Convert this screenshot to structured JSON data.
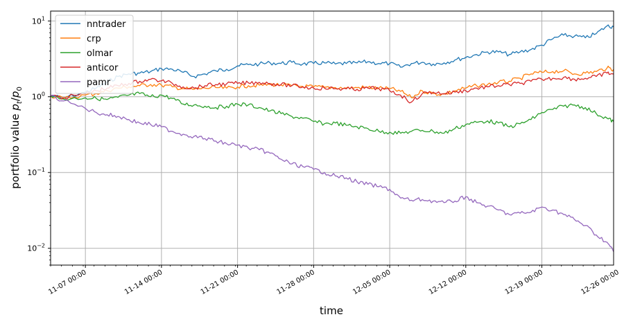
{
  "chart_data": {
    "type": "line",
    "title": "",
    "xlabel": "time",
    "ylabel": "portfolio value p_t/p_0",
    "ylabel_parts": {
      "prefix": "portfolio value ",
      "num": "p",
      "num_sub": "t",
      "den": "p",
      "den_sub": "0"
    },
    "yscale": "log",
    "ylim": [
      0.006,
      13.5
    ],
    "y_ticks": [
      {
        "value": 10,
        "base": "10",
        "exp": "1"
      },
      {
        "value": 1,
        "base": "10",
        "exp": "0"
      },
      {
        "value": 0.1,
        "base": "10",
        "exp": "−1"
      },
      {
        "value": 0.01,
        "base": "10",
        "exp": "−2"
      }
    ],
    "xlim": [
      -1.2,
      50.6
    ],
    "x_ticks": [
      {
        "value": 2,
        "label": "11-07 00:00"
      },
      {
        "value": 9,
        "label": "11-14 00:00"
      },
      {
        "value": 16,
        "label": "11-21 00:00"
      },
      {
        "value": 23,
        "label": "11-28 00:00"
      },
      {
        "value": 30,
        "label": "12-05 00:00"
      },
      {
        "value": 37,
        "label": "12-12 00:00"
      },
      {
        "value": 44,
        "label": "12-19 00:00"
      },
      {
        "value": 51,
        "label": "12-26 00:00"
      }
    ],
    "grid": true,
    "legend_position": "top-left",
    "series": [
      {
        "name": "nntrader",
        "color": "#1f77b4",
        "x": [
          -1.2,
          0,
          2,
          3,
          4,
          5,
          6,
          7,
          8,
          9,
          10,
          11,
          12,
          13,
          14,
          15,
          16,
          17,
          18,
          19,
          20,
          21,
          22,
          23,
          24,
          25,
          26,
          27,
          28,
          29,
          30,
          31,
          32,
          33,
          34,
          35,
          36,
          37,
          38,
          39,
          40,
          41,
          42,
          43,
          44,
          45,
          46,
          47,
          48,
          49,
          50,
          50.6
        ],
        "y": [
          1.03,
          0.96,
          1.15,
          1.3,
          1.55,
          1.85,
          2.0,
          2.05,
          2.15,
          2.35,
          2.3,
          2.1,
          1.85,
          2.0,
          2.2,
          2.3,
          2.55,
          2.65,
          2.7,
          2.8,
          2.75,
          2.85,
          2.7,
          2.75,
          2.8,
          2.7,
          2.75,
          2.8,
          2.9,
          2.75,
          2.75,
          2.45,
          2.75,
          2.85,
          2.7,
          2.8,
          3.05,
          3.3,
          3.6,
          3.9,
          3.9,
          3.6,
          3.9,
          4.2,
          4.8,
          5.8,
          6.5,
          6.3,
          6.0,
          6.8,
          8.6,
          8.4
        ]
      },
      {
        "name": "crp",
        "color": "#ff7f0e",
        "x": [
          -1.2,
          0,
          2,
          3,
          4,
          5,
          6,
          7,
          8,
          9,
          10,
          11,
          12,
          13,
          14,
          15,
          16,
          17,
          18,
          19,
          20,
          21,
          22,
          23,
          24,
          25,
          26,
          27,
          28,
          29,
          30,
          31,
          32,
          33,
          34,
          35,
          36,
          37,
          38,
          39,
          40,
          41,
          42,
          43,
          44,
          45,
          46,
          47,
          48,
          49,
          50,
          50.6
        ],
        "y": [
          1.03,
          0.95,
          1.05,
          1.1,
          1.2,
          1.3,
          1.35,
          1.4,
          1.45,
          1.42,
          1.35,
          1.28,
          1.25,
          1.3,
          1.32,
          1.3,
          1.35,
          1.4,
          1.42,
          1.45,
          1.43,
          1.4,
          1.37,
          1.35,
          1.33,
          1.32,
          1.3,
          1.32,
          1.33,
          1.3,
          1.28,
          1.18,
          0.97,
          1.2,
          1.1,
          1.08,
          1.2,
          1.3,
          1.4,
          1.45,
          1.55,
          1.6,
          1.75,
          2.0,
          2.1,
          2.15,
          2.2,
          2.0,
          2.05,
          2.15,
          2.4,
          2.3
        ]
      },
      {
        "name": "olmar",
        "color": "#2ca02c",
        "x": [
          -1.2,
          0,
          2,
          3,
          4,
          5,
          6,
          7,
          8,
          9,
          10,
          11,
          12,
          13,
          14,
          15,
          16,
          17,
          18,
          19,
          20,
          21,
          22,
          23,
          24,
          25,
          26,
          27,
          28,
          29,
          30,
          31,
          32,
          33,
          34,
          35,
          36,
          37,
          38,
          39,
          40,
          41,
          42,
          43,
          44,
          45,
          46,
          47,
          48,
          49,
          50,
          50.6
        ],
        "y": [
          1.03,
          0.93,
          0.97,
          0.95,
          0.92,
          0.98,
          1.05,
          1.1,
          1.0,
          1.05,
          0.95,
          0.8,
          0.78,
          0.75,
          0.72,
          0.75,
          0.8,
          0.78,
          0.72,
          0.65,
          0.6,
          0.55,
          0.52,
          0.47,
          0.44,
          0.45,
          0.42,
          0.4,
          0.38,
          0.35,
          0.34,
          0.33,
          0.35,
          0.36,
          0.35,
          0.33,
          0.38,
          0.43,
          0.46,
          0.48,
          0.45,
          0.4,
          0.44,
          0.5,
          0.62,
          0.68,
          0.75,
          0.78,
          0.72,
          0.6,
          0.52,
          0.47
        ]
      },
      {
        "name": "anticor",
        "color": "#d62728",
        "x": [
          -1.2,
          0,
          2,
          3,
          4,
          5,
          6,
          7,
          8,
          9,
          10,
          11,
          12,
          13,
          14,
          15,
          16,
          17,
          18,
          19,
          20,
          21,
          22,
          23,
          24,
          25,
          26,
          27,
          28,
          29,
          30,
          31,
          32,
          33,
          34,
          35,
          36,
          37,
          38,
          39,
          40,
          41,
          42,
          43,
          44,
          45,
          46,
          47,
          48,
          49,
          50,
          50.6
        ],
        "y": [
          1.03,
          0.97,
          1.1,
          1.2,
          1.3,
          1.4,
          1.5,
          1.6,
          1.7,
          1.62,
          1.5,
          1.35,
          1.3,
          1.4,
          1.45,
          1.48,
          1.5,
          1.52,
          1.55,
          1.5,
          1.45,
          1.4,
          1.35,
          1.3,
          1.3,
          1.28,
          1.27,
          1.25,
          1.3,
          1.28,
          1.2,
          1.05,
          0.85,
          1.1,
          1.15,
          1.1,
          1.15,
          1.2,
          1.3,
          1.35,
          1.4,
          1.45,
          1.5,
          1.6,
          1.7,
          1.75,
          1.8,
          1.7,
          1.75,
          1.85,
          2.05,
          2.0
        ]
      },
      {
        "name": "pamr",
        "color": "#9467bd",
        "x": [
          -1.2,
          0,
          2,
          3,
          4,
          5,
          6,
          7,
          8,
          9,
          10,
          11,
          12,
          13,
          14,
          15,
          16,
          17,
          18,
          19,
          20,
          21,
          22,
          23,
          24,
          25,
          26,
          27,
          28,
          29,
          30,
          31,
          32,
          33,
          34,
          35,
          36,
          37,
          38,
          39,
          40,
          41,
          42,
          43,
          44,
          45,
          46,
          47,
          48,
          49,
          50,
          50.6
        ],
        "y": [
          1.03,
          0.88,
          0.7,
          0.62,
          0.58,
          0.55,
          0.5,
          0.45,
          0.43,
          0.4,
          0.35,
          0.32,
          0.3,
          0.28,
          0.26,
          0.24,
          0.23,
          0.21,
          0.2,
          0.18,
          0.15,
          0.13,
          0.12,
          0.11,
          0.1,
          0.09,
          0.085,
          0.075,
          0.07,
          0.065,
          0.06,
          0.046,
          0.043,
          0.044,
          0.042,
          0.04,
          0.042,
          0.048,
          0.04,
          0.036,
          0.032,
          0.028,
          0.029,
          0.03,
          0.035,
          0.032,
          0.028,
          0.024,
          0.02,
          0.015,
          0.012,
          0.009
        ]
      }
    ]
  }
}
